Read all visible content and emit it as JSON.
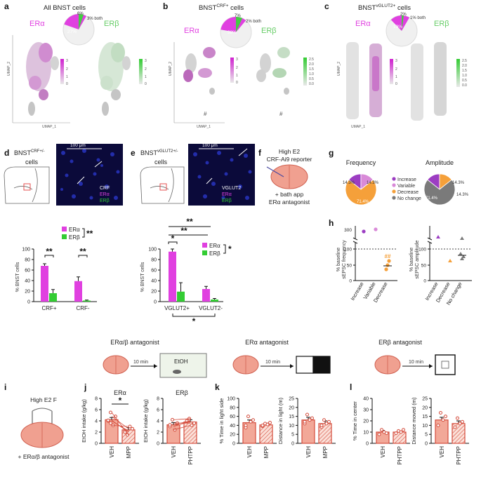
{
  "colors": {
    "era": "#e040e0",
    "erb": "#33cc33",
    "erb_text": "#66cc66",
    "increase": "#9c3dc2",
    "variable": "#d98ad8",
    "decrease": "#f5a03a",
    "nochange": "#7a7a7a",
    "bar_fill": "#f2a898",
    "bar_edge": "#d44c3c",
    "night": "#0b0a3a"
  },
  "panels": {
    "a": {
      "letter": "a",
      "title": "All BNST cells",
      "era": "ERα",
      "erb": "ERβ",
      "pie_main": "27%",
      "pie_small": "6%",
      "pie_both": "3% both",
      "scale_era": [
        "3",
        "2",
        "1",
        "0"
      ],
      "scale_erb": [
        "3",
        "2",
        "1",
        "0"
      ],
      "umap1": "UMAP_1",
      "umap2": "UMAP_2"
    },
    "b": {
      "letter": "b",
      "title_pre": "BNST",
      "title_sup": "CRF+",
      "title_post": " cells",
      "era": "ERα",
      "erb": "ERβ",
      "pie_main": "38%",
      "pie_small": "7%",
      "pie_both": "2% both",
      "scale_era": [
        "3",
        "2",
        "1",
        "0"
      ],
      "scale_erb": [
        "2.5",
        "2.0",
        "1.5",
        "1.0",
        "0.5",
        "0.0"
      ],
      "umap1": "UMAP_1",
      "umap2": "UMAP_2",
      "cluster_mark": "#"
    },
    "c": {
      "letter": "c",
      "title_pre": "BNST",
      "title_sup": "vGLUT2+",
      "title_post": " cells",
      "era": "ERα",
      "erb": "ERβ",
      "pie_main": "19%",
      "pie_small": "2%",
      "pie_both": "1% both",
      "scale_era": [
        "3",
        "2",
        "1",
        "0"
      ],
      "scale_erb": [
        "2.5",
        "2.0",
        "1.5",
        "1.0",
        "0.5",
        "0.0"
      ],
      "umap1": "UMAP_1",
      "umap2": "UMAP_2"
    },
    "d": {
      "letter": "d",
      "title_pre": "BNST",
      "title_sup": "CRF+/-",
      "title_line2": "cells",
      "scale": "100 μm",
      "ch1": "CRF",
      "ch2": "ERα",
      "ch3": "ERβ"
    },
    "e": {
      "letter": "e",
      "title_pre": "BNST",
      "title_sup": "vGLUT2+/-",
      "title_line2": "cells",
      "scale": "100 μm",
      "ch1": "VGLUT2",
      "ch2": "ERα",
      "ch3": "ERβ"
    },
    "f": {
      "letter": "f",
      "line1": "High E2",
      "line2": "CRF-Ai9 reporter",
      "line3": "+ bath app",
      "line4": "ERα antagonist"
    },
    "g": {
      "letter": "g",
      "title_freq": "Frequency",
      "title_amp": "Amplitude",
      "freq_labels": [
        "14.3%",
        "14.3%",
        "71.4%"
      ],
      "amp_labels": [
        "14.3%",
        "14.3%",
        "71.4%"
      ],
      "legend": [
        "Increase",
        "Variable",
        "Decrease",
        "No change"
      ]
    },
    "h": {
      "letter": "h",
      "ylabel1": "% baseline",
      "ylabel2": "sEPSC frequency",
      "ylabel3": "sEPSC amplitude",
      "yticks_top": "300",
      "yticks": [
        "100",
        "50",
        "0"
      ],
      "yticks2": [
        "100",
        "50",
        "0"
      ],
      "xcats1": [
        "Increase",
        "Variable",
        "Decrease"
      ],
      "xcats2": [
        "Increase",
        "Decrease",
        "No change"
      ],
      "sig": "##"
    },
    "i": {
      "letter": "i",
      "line1": "High E2 F",
      "line2": "+ ERα/β antagonist"
    },
    "j": {
      "letter": "j",
      "header": "ERα/β antagonist",
      "arrow": "10 min",
      "box": "EtOH"
    },
    "k": {
      "letter": "k",
      "header": "ERα antagonist",
      "arrow": "10 min"
    },
    "l": {
      "letter": "l",
      "header": "ERβ antagonist",
      "arrow": "10 min"
    }
  },
  "chart_data": [
    {
      "id": "d_chart",
      "type": "bar",
      "ylabel": "% BNST cells",
      "categories": [
        "CRF+",
        "CRF-"
      ],
      "series": [
        {
          "name": "ERα",
          "values": [
            68,
            39
          ],
          "errors": [
            4,
            8
          ]
        },
        {
          "name": "ERβ",
          "values": [
            16,
            2
          ],
          "errors": [
            7,
            1
          ]
        }
      ],
      "ylim": [
        0,
        100
      ],
      "yticks": [
        0,
        20,
        40,
        60,
        80,
        100
      ],
      "sig": [
        "**",
        "**",
        "**"
      ]
    },
    {
      "id": "e_chart",
      "type": "bar",
      "ylabel": "% BNST cells",
      "categories": [
        "VGLUT2+",
        "VGLUT2-"
      ],
      "series": [
        {
          "name": "ERα",
          "values": [
            95,
            24
          ],
          "errors": [
            5,
            5
          ]
        },
        {
          "name": "ERβ",
          "values": [
            19,
            4
          ],
          "errors": [
            17,
            2
          ]
        }
      ],
      "ylim": [
        0,
        100
      ],
      "yticks": [
        0,
        20,
        40,
        60,
        80,
        100
      ],
      "sig": [
        "*",
        "**",
        "**",
        "*",
        "*"
      ]
    },
    {
      "id": "g_freq",
      "type": "pie",
      "labels": [
        "Increase",
        "Variable",
        "Decrease"
      ],
      "values": [
        14.3,
        14.3,
        71.4
      ]
    },
    {
      "id": "g_amp",
      "type": "pie",
      "labels": [
        "Increase",
        "Decrease",
        "No change"
      ],
      "values": [
        14.3,
        14.3,
        71.4
      ]
    },
    {
      "id": "j_era",
      "type": "bar",
      "title": "ERα",
      "ylabel": "EtOH intake (g/kg)",
      "categories": [
        "VEH",
        "MPP"
      ],
      "values": [
        4.2,
        2.4
      ],
      "errors": [
        0.4,
        0.4
      ],
      "ylim": [
        0,
        8
      ],
      "yticks": [
        0,
        2,
        4,
        6,
        8
      ],
      "sig": "*"
    },
    {
      "id": "j_erb",
      "type": "bar",
      "title": "ERβ",
      "ylabel": "EtOH intake (g/kg)",
      "categories": [
        "VEH",
        "PHTPP"
      ],
      "values": [
        3.3,
        3.8
      ],
      "errors": [
        0.4,
        0.4
      ],
      "ylim": [
        0,
        8
      ],
      "yticks": [
        0,
        2,
        4,
        6,
        8
      ]
    },
    {
      "id": "k_time",
      "type": "bar",
      "ylabel": "% Time in light side",
      "categories": [
        "VEH",
        "MPP"
      ],
      "values": [
        46,
        41
      ],
      "errors": [
        6,
        4
      ],
      "ylim": [
        0,
        100
      ],
      "yticks": [
        0,
        20,
        40,
        60,
        80,
        100
      ]
    },
    {
      "id": "k_dist",
      "type": "bar",
      "ylabel": "Distance in light (m)",
      "categories": [
        "VEH",
        "MPP"
      ],
      "values": [
        13,
        11
      ],
      "errors": [
        1.5,
        1.5
      ],
      "ylim": [
        0,
        25
      ],
      "yticks": [
        0,
        5,
        10,
        15,
        20,
        25
      ]
    },
    {
      "id": "l_center",
      "type": "bar",
      "ylabel": "% Time in center",
      "categories": [
        "VEH",
        "PHTPP"
      ],
      "values": [
        10,
        10
      ],
      "errors": [
        1.5,
        1
      ],
      "ylim": [
        0,
        40
      ],
      "yticks": [
        0,
        10,
        20,
        30,
        40
      ]
    },
    {
      "id": "l_dist",
      "type": "bar",
      "ylabel": "Distance moved (m)",
      "categories": [
        "VEH",
        "PHTPP"
      ],
      "values": [
        13,
        11
      ],
      "errors": [
        1.5,
        1.5
      ],
      "ylim": [
        0,
        25
      ],
      "yticks": [
        0,
        5,
        10,
        15,
        20,
        25
      ]
    }
  ]
}
